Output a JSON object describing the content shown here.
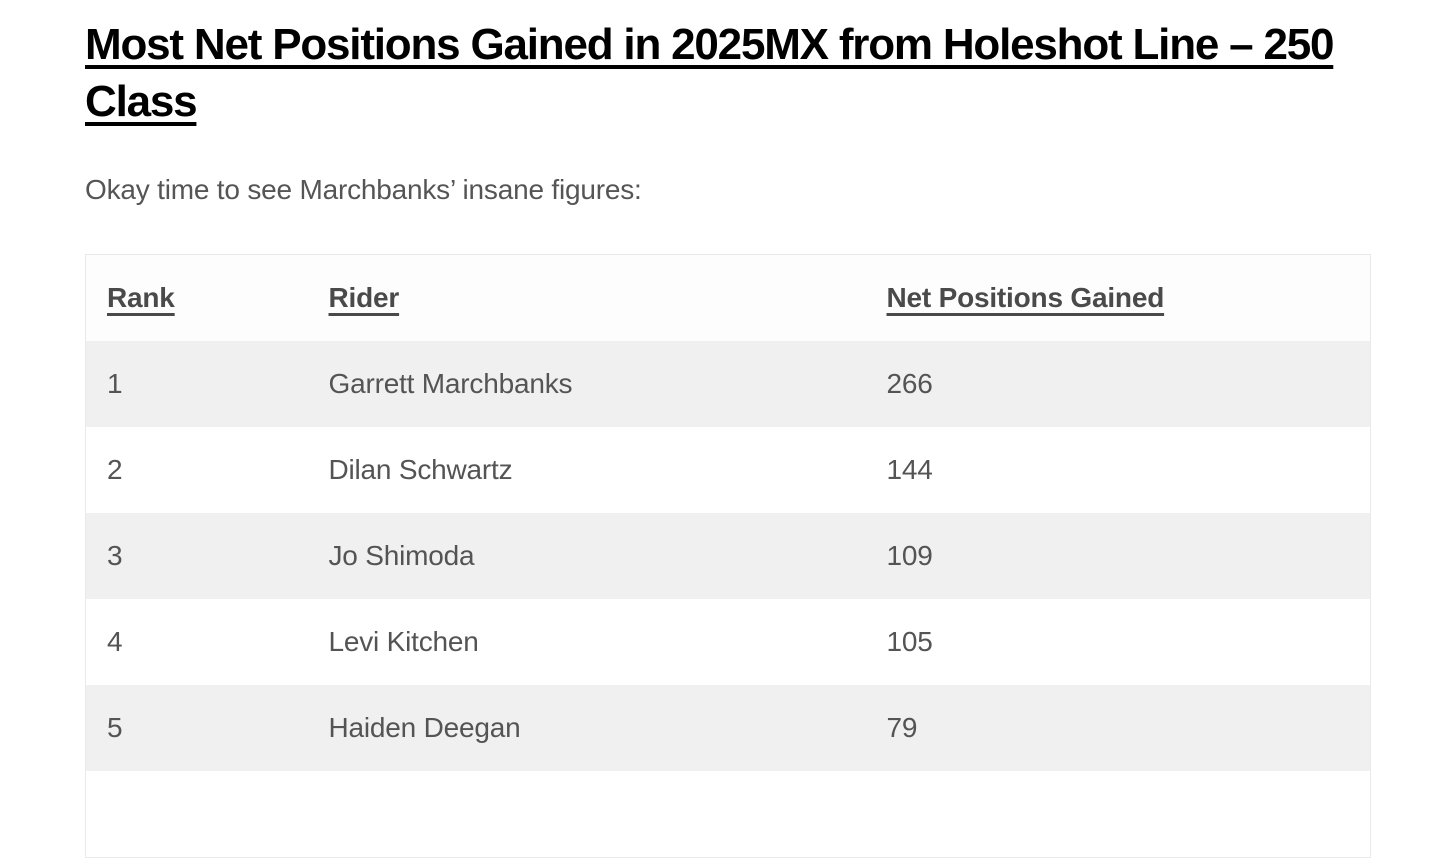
{
  "article": {
    "title": "Most Net Positions Gained in 2025MX from Holeshot Line – 250 Class",
    "intro": "Okay time to see Marchbanks’ insane figures:"
  },
  "table": {
    "columns": [
      "Rank",
      "Rider",
      "Net Positions Gained"
    ],
    "rows": [
      {
        "rank": "1",
        "rider": "Garrett Marchbanks",
        "net_positions_gained": "266"
      },
      {
        "rank": "2",
        "rider": "Dilan Schwartz",
        "net_positions_gained": "144"
      },
      {
        "rank": "3",
        "rider": "Jo Shimoda",
        "net_positions_gained": "109"
      },
      {
        "rank": "4",
        "rider": "Levi Kitchen",
        "net_positions_gained": "105"
      },
      {
        "rank": "5",
        "rider": "Haiden Deegan",
        "net_positions_gained": "79"
      }
    ]
  },
  "colors": {
    "heading_text": "#000000",
    "body_text": "#555555",
    "header_text": "#4a4a4a",
    "row_stripe": "#f0f0f0",
    "table_border": "#e9e9e9",
    "background": "#ffffff"
  }
}
